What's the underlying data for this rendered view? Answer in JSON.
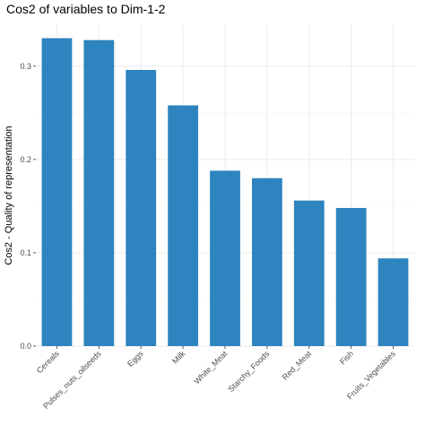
{
  "chart_data": {
    "type": "bar",
    "title": "Cos2 of variables to Dim-1-2",
    "xlabel": "",
    "ylabel": "Cos2 - Quality of representation",
    "categories": [
      "Cereals",
      "Pulses_nuts_oilseeds",
      "Eggs",
      "Milk",
      "White_Meat",
      "Starchy_Foods",
      "Red_Meat",
      "Fish",
      "Fruits_Vegetables"
    ],
    "values": [
      0.33,
      0.328,
      0.296,
      0.258,
      0.188,
      0.18,
      0.156,
      0.148,
      0.094
    ],
    "ylim": [
      0,
      0.345
    ],
    "yticks": [
      0.0,
      0.1,
      0.2,
      0.3
    ],
    "ytick_labels": [
      "0.0",
      "0.1",
      "0.2",
      "0.3"
    ],
    "grid": true,
    "bar_color": "#2e84be",
    "grid_color": "#ebebeb"
  }
}
